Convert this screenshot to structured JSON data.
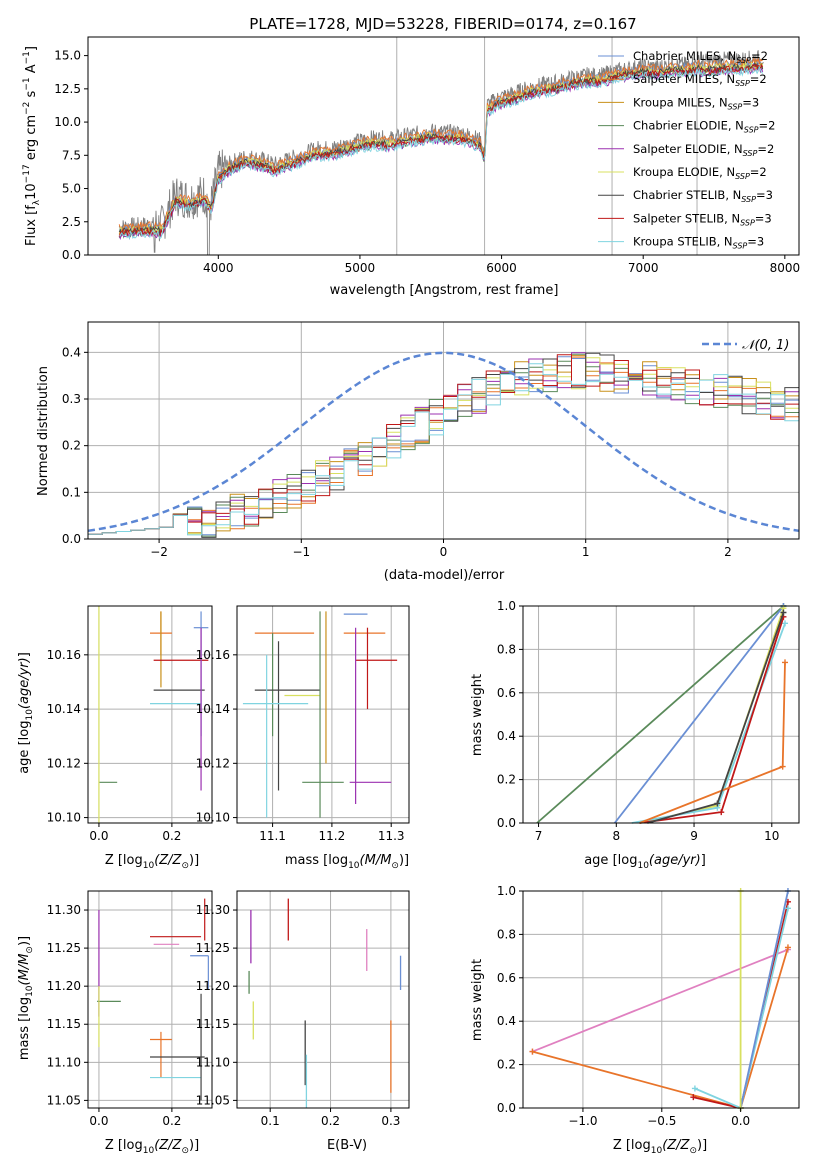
{
  "figure": {
    "title": "PLATE=1728, MJD=53228, FIBERID=0174, z=0.167"
  },
  "chart_data": [
    {
      "id": "spectrum",
      "type": "line",
      "xlabel": "wavelength [Angstrom, rest frame]",
      "ylabel": "Flux [f",
      "xlim": [
        3080,
        8100
      ],
      "ylim": [
        0,
        16.4
      ],
      "xticks": [
        4000,
        5000,
        6000,
        7000,
        8000
      ],
      "yticks": [
        "0.0",
        "2.5",
        "5.0",
        "7.5",
        "10.0",
        "12.5",
        "15.0"
      ],
      "vlines": [
        5260,
        5880,
        6780,
        7380
      ],
      "legend_position": "top-right",
      "data_x": [
        3300,
        3500,
        3600,
        3700,
        3800,
        3900,
        3950,
        4000,
        4100,
        4200,
        4300,
        4400,
        4500,
        4600,
        4700,
        4800,
        4900,
        5000,
        5100,
        5200,
        5300,
        5400,
        5500,
        5600,
        5700,
        5800,
        5850,
        5880,
        5900,
        6000,
        6100,
        6200,
        6300,
        6400,
        6500,
        6600,
        6700,
        6800,
        6900,
        7000,
        7100,
        7200,
        7300,
        7400,
        7500,
        7600,
        7700,
        7800
      ],
      "data_y": [
        2.1,
        2.3,
        2.2,
        4.5,
        4.2,
        4.6,
        3.8,
        6.2,
        7.0,
        7.4,
        7.2,
        6.8,
        7.2,
        7.6,
        8.0,
        8.0,
        8.3,
        8.6,
        8.8,
        8.7,
        8.9,
        9.1,
        9.3,
        9.2,
        9.2,
        8.9,
        8.6,
        7.6,
        11.3,
        11.9,
        12.2,
        12.6,
        12.8,
        13.0,
        13.3,
        13.5,
        13.5,
        13.8,
        14.0,
        14.2,
        14.1,
        14.3,
        14.3,
        14.5,
        14.6,
        14.7,
        14.7,
        14.8
      ],
      "series": [
        {
          "name": "Chabrier MILES, N",
          "sub": "SSP",
          "eq": "=2",
          "color": "#6a8fd4",
          "offset": 0.15
        },
        {
          "name": "Salpeter MILES, N",
          "sub": "SSP",
          "eq": "=2",
          "color": "#e8742a",
          "offset": 0.3
        },
        {
          "name": "Kroupa MILES, N",
          "sub": "SSP",
          "eq": "=3",
          "color": "#c8901a",
          "offset": -0.1
        },
        {
          "name": "Chabrier ELODIE, N",
          "sub": "SSP",
          "eq": "=2",
          "color": "#5a8a5a",
          "offset": -0.2
        },
        {
          "name": "Salpeter ELODIE, N",
          "sub": "SSP",
          "eq": "=2",
          "color": "#9b30b0",
          "offset": -0.3
        },
        {
          "name": "Kroupa ELODIE, N",
          "sub": "SSP",
          "eq": "=2",
          "color": "#d8e060",
          "offset": 0.05
        },
        {
          "name": "Chabrier STELIB, N",
          "sub": "SSP",
          "eq": "=3",
          "color": "#444444",
          "offset": -0.05
        },
        {
          "name": "Salpeter STELIB, N",
          "sub": "SSP",
          "eq": "=3",
          "color": "#c01818",
          "offset": -0.15
        },
        {
          "name": "Kroupa STELIB, N",
          "sub": "SSP",
          "eq": "=3",
          "color": "#80d4e0",
          "offset": -0.35
        }
      ]
    },
    {
      "id": "residuals",
      "type": "line",
      "xlabel": "(data-model)/error",
      "ylabel": "Normed distribution",
      "xlim": [
        -2.5,
        2.5
      ],
      "ylim": [
        0,
        0.465
      ],
      "xticks": [
        -2,
        -1,
        0,
        1,
        2
      ],
      "xticklabels": [
        "−2",
        "−1",
        "0",
        "1",
        "2"
      ],
      "yticks": [
        "0.0",
        "0.1",
        "0.2",
        "0.3",
        "0.4"
      ],
      "legend": "𝒩(0, 1)",
      "legend_position": "top-right",
      "normal_color": "#5b86d4",
      "bin_width": 0.1
    },
    {
      "id": "age-vs-Z",
      "type": "scatter",
      "xlabel": "Z [log",
      "ylabel": "age  [log",
      "xlim": [
        -0.03,
        0.31
      ],
      "ylim": [
        10.098,
        10.178
      ],
      "xticks": [
        "0.0",
        "0.2"
      ],
      "yticks": [
        "10.10",
        "10.12",
        "10.14",
        "10.16"
      ]
    },
    {
      "id": "age-vs-mass",
      "type": "scatter",
      "xlabel": "mass [log",
      "xlim": [
        11.04,
        11.33
      ],
      "ylim": [
        10.098,
        10.178
      ],
      "xticks": [
        "11.1",
        "11.2",
        "11.3"
      ],
      "yticks": [
        "10.10",
        "10.12",
        "10.14",
        "10.16"
      ]
    },
    {
      "id": "weight-vs-age",
      "type": "line",
      "xlabel": "age  [log",
      "ylabel": "mass weight",
      "xlim": [
        6.8,
        10.35
      ],
      "ylim": [
        0,
        1.0
      ],
      "xticks": [
        "7",
        "8",
        "9",
        "10"
      ],
      "yticks": [
        "0.0",
        "0.2",
        "0.4",
        "0.6",
        "0.8",
        "1.0"
      ]
    },
    {
      "id": "mass-vs-Z",
      "type": "scatter",
      "xlabel": "Z [log",
      "ylabel": "mass [log",
      "xlim": [
        -0.03,
        0.31
      ],
      "ylim": [
        11.04,
        11.325
      ],
      "xticks": [
        "0.0",
        "0.2"
      ],
      "yticks": [
        "11.05",
        "11.10",
        "11.15",
        "11.20",
        "11.25",
        "11.30"
      ]
    },
    {
      "id": "mass-vs-ebv",
      "type": "scatter",
      "xlabel": "E(B-V)",
      "xlim": [
        0.045,
        0.33
      ],
      "ylim": [
        11.04,
        11.325
      ],
      "xticks": [
        "0.1",
        "0.2",
        "0.3"
      ],
      "yticks": [
        "11.05",
        "11.10",
        "11.15",
        "11.20",
        "11.25",
        "11.30"
      ]
    },
    {
      "id": "weight-vs-Z",
      "type": "line",
      "xlabel": "Z [log",
      "ylabel": "mass weight",
      "xlim": [
        -1.38,
        0.37
      ],
      "ylim": [
        0,
        1.0
      ],
      "xticks": [
        "−1.0",
        "−0.5",
        "0.0"
      ],
      "yticks": [
        "0.0",
        "0.2",
        "0.4",
        "0.6",
        "0.8",
        "1.0"
      ]
    }
  ],
  "subscripts": {
    "lambda": "λ",
    "flux_units": "10",
    "flux_exp": "−17",
    "flux_units_rest": " erg cm",
    "cm_exp": "−2",
    "s": " s",
    "s_exp": "−1",
    "A": " A",
    "A_exp": "−1",
    "close": "]",
    "log10": "10",
    "Zsun": "(Z/Z",
    "Msun": "(M/M",
    "sun": "⊙",
    "agefrac": "(age/yr)",
    "closeparen": ")]",
    "closeage": "]"
  }
}
